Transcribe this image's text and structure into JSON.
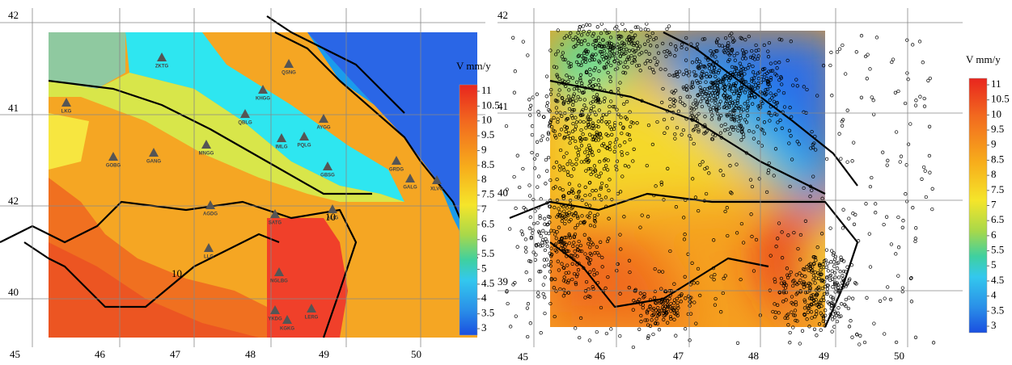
{
  "left_map": {
    "lat_labels": [
      "42",
      "41",
      "42",
      "40"
    ],
    "lon_labels": [
      "45",
      "46",
      "47",
      "48",
      "49",
      "50"
    ],
    "contour_labels": [
      "10",
      "10"
    ],
    "stations": [
      "ZKTG",
      "QSNG",
      "KHGG",
      "QBLG",
      "AYGG",
      "IMLG",
      "PQLG",
      "GBSG",
      "GRDG",
      "GALG",
      "XLVG",
      "GOBG",
      "GANG",
      "MNGG",
      "LKG",
      "AGDG",
      "SATG",
      "ALIG",
      "LLG",
      "NGLBG",
      "YKDG",
      "LERG",
      "KGKG"
    ],
    "legend": {
      "title": "V mm/y",
      "ticks": [
        11,
        10.5,
        10,
        9.5,
        9,
        8.5,
        8,
        7.5,
        7,
        6.5,
        6,
        5.5,
        5,
        4.5,
        4,
        3.5,
        3
      ]
    }
  },
  "right_map": {
    "lat_labels": [
      "42",
      "41",
      "40",
      "39"
    ],
    "lon_labels": [
      "45",
      "46",
      "47",
      "48",
      "49",
      "50"
    ],
    "legend": {
      "title": "V mm/y",
      "ticks": [
        11,
        10.5,
        10,
        9.5,
        9,
        8.5,
        8,
        7.5,
        7,
        6.5,
        6,
        5.5,
        5,
        4.5,
        4,
        3.5,
        3
      ]
    }
  }
}
